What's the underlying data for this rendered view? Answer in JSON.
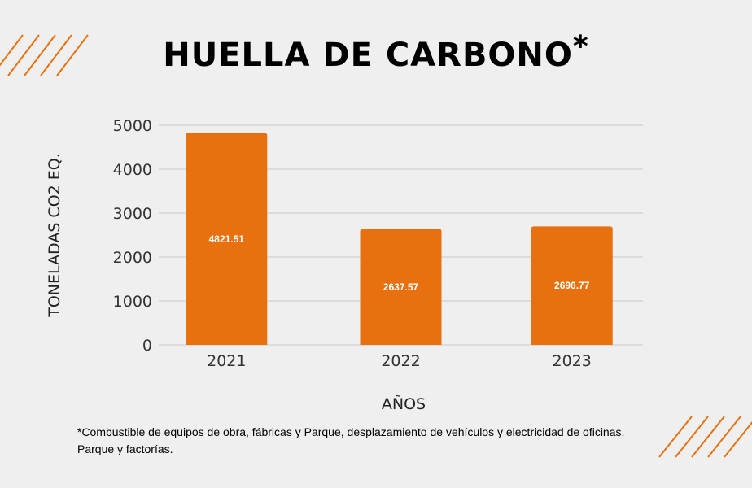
{
  "title": "HUELLA DE CARBONO",
  "title_mark": "*",
  "footnote": "*Combustible de equipos de obra, fábricas y Parque, desplazamiento de vehículos y electricidad de oficinas, Parque y factorías.",
  "colors": {
    "bar": "#e8700e",
    "background": "#efefef",
    "accent_lines": "#e8700e"
  },
  "chart_data": {
    "type": "bar",
    "categories": [
      "2021",
      "2022",
      "2023"
    ],
    "values": [
      4821.51,
      2637.57,
      2696.77
    ],
    "data_labels": [
      "4821.51",
      "2637.57",
      "2696.77"
    ],
    "xlabel": "AÑOS",
    "ylabel": "TONELADAS CO2 EQ.",
    "ylim": [
      0,
      5000
    ],
    "yticks": [
      0,
      1000,
      2000,
      3000,
      4000,
      5000
    ],
    "grid": true,
    "legend": "none"
  }
}
